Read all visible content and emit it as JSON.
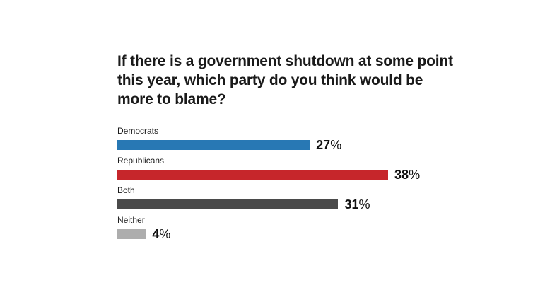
{
  "page": {
    "background_color": "#ffffff",
    "text_color": "#1a1a1a"
  },
  "chart_data": {
    "type": "bar",
    "orientation": "horizontal",
    "title": "If there is a government shutdown at some point this year, which party do you think would be more to blame?",
    "categories": [
      "Democrats",
      "Republicans",
      "Both",
      "Neither"
    ],
    "values": [
      27,
      38,
      31,
      4
    ],
    "value_labels": [
      "27%",
      "38%",
      "31%",
      "4%"
    ],
    "unit": "%",
    "colors": [
      "#2878b4",
      "#c6262b",
      "#4a4a4a",
      "#adadad"
    ],
    "xlim": [
      0,
      60
    ],
    "grid": false,
    "legend": "none",
    "xlabel": "",
    "ylabel": ""
  }
}
